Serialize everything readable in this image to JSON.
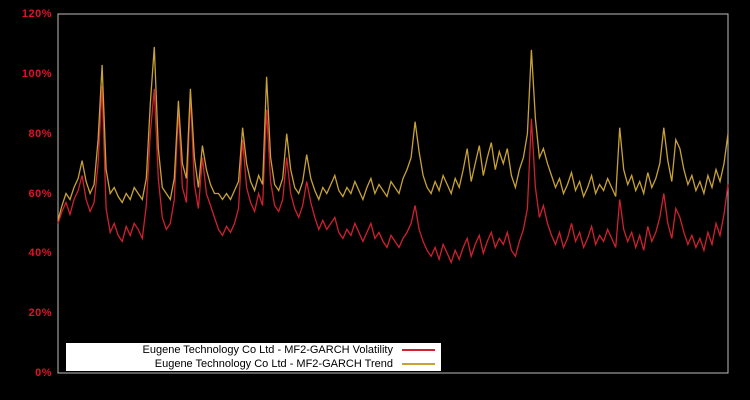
{
  "background": "#000000",
  "plot_border_color": "#bdbdbd",
  "axis_label_color": "#e01228",
  "chart_data": {
    "type": "line",
    "title": "",
    "xlabel": "",
    "ylabel": "",
    "ylim": [
      0,
      120
    ],
    "grid": false,
    "legend_position": "bottom-left",
    "yticks": [
      {
        "value": 0,
        "label": "0%"
      },
      {
        "value": 20,
        "label": "20%"
      },
      {
        "value": 40,
        "label": "40%"
      },
      {
        "value": 60,
        "label": "60%"
      },
      {
        "value": 80,
        "label": "80%"
      },
      {
        "value": 100,
        "label": "100%"
      },
      {
        "value": 120,
        "label": "120%"
      }
    ],
    "x_axis_note": "no x tick labels visible",
    "series": [
      {
        "key": "volatility",
        "name": "Eugene Technology Co Ltd - MF2-GARCH Volatility",
        "color": "#cf2130",
        "values": [
          50,
          54,
          57,
          53,
          58,
          61,
          66,
          58,
          54,
          57,
          70,
          96,
          55,
          47,
          50,
          46,
          44,
          49,
          46,
          50,
          48,
          45,
          56,
          80,
          95,
          65,
          52,
          48,
          50,
          58,
          88,
          62,
          57,
          93,
          63,
          55,
          72,
          60,
          56,
          52,
          48,
          46,
          49,
          47,
          50,
          55,
          78,
          62,
          57,
          54,
          60,
          56,
          88,
          64,
          56,
          54,
          58,
          72,
          60,
          55,
          52,
          56,
          64,
          57,
          52,
          48,
          51,
          48,
          50,
          52,
          47,
          45,
          48,
          46,
          50,
          47,
          44,
          47,
          50,
          45,
          47,
          44,
          42,
          46,
          44,
          42,
          45,
          47,
          50,
          56,
          48,
          44,
          41,
          39,
          42,
          38,
          43,
          40,
          37,
          41,
          38,
          42,
          45,
          39,
          43,
          46,
          40,
          44,
          47,
          42,
          45,
          43,
          47,
          41,
          39,
          44,
          48,
          55,
          85,
          62,
          52,
          56,
          50,
          46,
          43,
          47,
          42,
          45,
          50,
          44,
          47,
          42,
          45,
          49,
          43,
          46,
          44,
          48,
          45,
          42,
          58,
          48,
          44,
          47,
          42,
          46,
          41,
          49,
          44,
          47,
          52,
          60,
          50,
          45,
          55,
          52,
          47,
          43,
          46,
          42,
          45,
          41,
          47,
          43,
          50,
          46,
          53,
          63
        ]
      },
      {
        "key": "trend",
        "name": "Eugene Technology Co Ltd - MF2-GARCH Trend",
        "color": "#c8a233",
        "values": [
          51,
          56,
          60,
          58,
          62,
          65,
          71,
          64,
          60,
          63,
          78,
          103,
          68,
          60,
          62,
          59,
          57,
          60,
          58,
          62,
          60,
          58,
          65,
          90,
          109,
          75,
          62,
          60,
          58,
          65,
          91,
          70,
          65,
          95,
          72,
          62,
          76,
          68,
          63,
          60,
          60,
          58,
          60,
          58,
          61,
          64,
          82,
          70,
          64,
          61,
          66,
          63,
          99,
          72,
          63,
          61,
          65,
          80,
          68,
          62,
          60,
          64,
          73,
          65,
          61,
          58,
          62,
          60,
          63,
          66,
          61,
          59,
          62,
          60,
          64,
          61,
          58,
          62,
          65,
          60,
          63,
          61,
          59,
          64,
          62,
          60,
          65,
          68,
          72,
          84,
          74,
          66,
          62,
          60,
          64,
          61,
          66,
          63,
          60,
          65,
          62,
          68,
          75,
          64,
          70,
          76,
          66,
          72,
          77,
          68,
          74,
          70,
          75,
          66,
          62,
          68,
          72,
          80,
          108,
          85,
          72,
          75,
          70,
          66,
          62,
          65,
          60,
          63,
          67,
          61,
          64,
          59,
          62,
          66,
          60,
          63,
          61,
          65,
          62,
          59,
          82,
          68,
          63,
          66,
          61,
          64,
          60,
          67,
          62,
          65,
          70,
          82,
          71,
          64,
          78,
          75,
          68,
          63,
          66,
          61,
          64,
          60,
          66,
          62,
          68,
          64,
          70,
          80
        ]
      }
    ]
  }
}
